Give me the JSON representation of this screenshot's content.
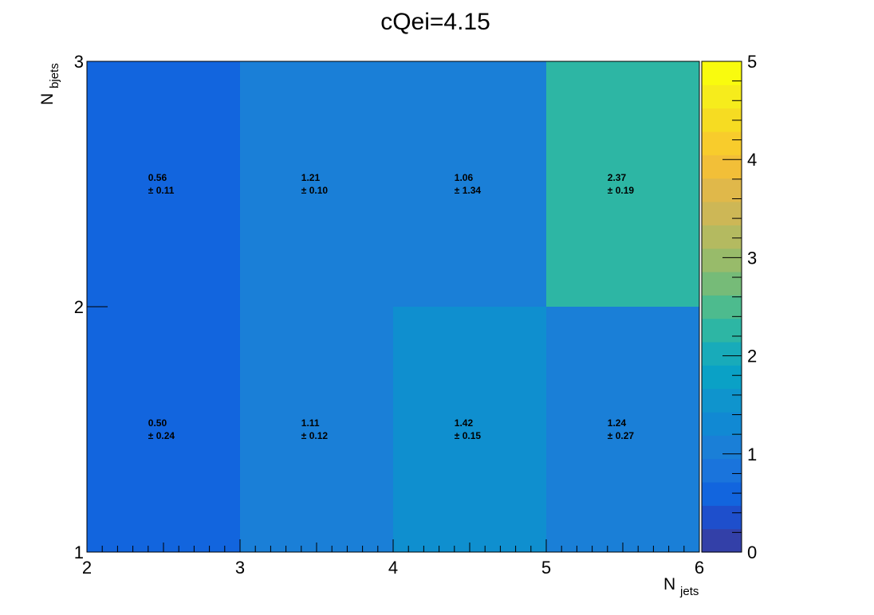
{
  "chart_data": {
    "type": "heatmap",
    "title": "cQei=4.15",
    "xlabel": {
      "main": "N",
      "sub": "jets"
    },
    "ylabel": {
      "main": "N",
      "sub": "bjets"
    },
    "x_edges": [
      2,
      3,
      4,
      5,
      6
    ],
    "y_edges": [
      1,
      2,
      3
    ],
    "x_ticks": [
      "2",
      "3",
      "4",
      "5",
      "6"
    ],
    "y_ticks": [
      "1",
      "2",
      "3"
    ],
    "xlim": [
      2,
      6
    ],
    "ylim": [
      1,
      3
    ],
    "zlim": [
      0,
      5
    ],
    "z_ticks": [
      "0",
      "1",
      "2",
      "3",
      "4",
      "5"
    ],
    "cells": [
      {
        "x": 2,
        "y": 1,
        "value": 0.5,
        "error": 0.24,
        "value_text": "0.50",
        "error_text": "± 0.24",
        "color": "#1265de"
      },
      {
        "x": 3,
        "y": 1,
        "value": 1.11,
        "error": 0.12,
        "value_text": "1.11",
        "error_text": "± 0.12",
        "color": "#1a7fd7"
      },
      {
        "x": 4,
        "y": 1,
        "value": 1.42,
        "error": 0.15,
        "value_text": "1.42",
        "error_text": "± 0.15",
        "color": "#0f8fcf"
      },
      {
        "x": 5,
        "y": 1,
        "value": 1.24,
        "error": 0.27,
        "value_text": "1.24",
        "error_text": "± 0.27",
        "color": "#1a7fd7"
      },
      {
        "x": 2,
        "y": 2,
        "value": 0.56,
        "error": 0.11,
        "value_text": "0.56",
        "error_text": "± 0.11",
        "color": "#1265de"
      },
      {
        "x": 3,
        "y": 2,
        "value": 1.21,
        "error": 0.1,
        "value_text": "1.21",
        "error_text": "± 0.10",
        "color": "#1a7fd7"
      },
      {
        "x": 4,
        "y": 2,
        "value": 1.06,
        "error": 1.34,
        "value_text": "1.06",
        "error_text": "± 1.34",
        "color": "#1a7fd7"
      },
      {
        "x": 5,
        "y": 2,
        "value": 2.37,
        "error": 0.19,
        "value_text": "2.37",
        "error_text": "± 0.19",
        "color": "#2db6a4"
      }
    ],
    "palette": [
      "#3340a8",
      "#1e4fcc",
      "#1265de",
      "#1a74dc",
      "#1a7fd7",
      "#1189d3",
      "#0f94cd",
      "#0aa1c6",
      "#18abba",
      "#2db6a4",
      "#4dbb8e",
      "#76bb78",
      "#98bb6a",
      "#b4ba60",
      "#cdb756",
      "#e0b84a",
      "#f2bf38",
      "#f8cc2c",
      "#f6dc22",
      "#f6ec1c",
      "#f9fb0e"
    ],
    "grid": false,
    "legend": "none"
  }
}
